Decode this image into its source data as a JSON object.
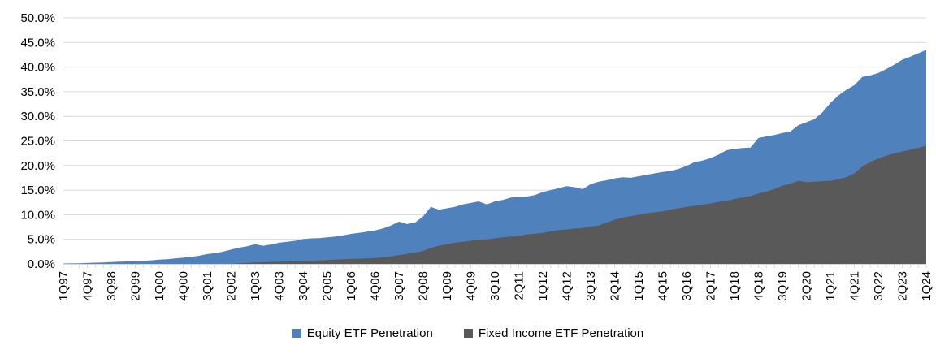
{
  "chart_data": {
    "type": "area",
    "title": "",
    "xlabel": "",
    "ylabel": "",
    "ylim": [
      0,
      50
    ],
    "y_tick_step": 5,
    "y_tick_labels": [
      "0.0%",
      "5.0%",
      "10.0%",
      "15.0%",
      "20.0%",
      "25.0%",
      "30.0%",
      "35.0%",
      "40.0%",
      "45.0%",
      "50.0%"
    ],
    "x_tick_labels": [
      "1Q97",
      "4Q97",
      "3Q98",
      "2Q99",
      "1Q00",
      "4Q00",
      "3Q01",
      "2Q02",
      "1Q03",
      "4Q03",
      "3Q04",
      "2Q05",
      "1Q06",
      "4Q06",
      "3Q07",
      "2Q08",
      "1Q09",
      "4Q09",
      "3Q10",
      "2Q11",
      "1Q12",
      "4Q12",
      "3Q13",
      "2Q14",
      "1Q15",
      "4Q15",
      "3Q16",
      "2Q17",
      "1Q18",
      "4Q18",
      "3Q19",
      "2Q20",
      "1Q21",
      "4Q21",
      "3Q22",
      "2Q23",
      "1Q24"
    ],
    "x_label_every_n": 3,
    "grid": "horizontal",
    "legend_position": "bottom",
    "categories": [
      "1Q97",
      "2Q97",
      "3Q97",
      "4Q97",
      "1Q98",
      "2Q98",
      "3Q98",
      "4Q98",
      "1Q99",
      "2Q99",
      "3Q99",
      "4Q99",
      "1Q00",
      "2Q00",
      "3Q00",
      "4Q00",
      "1Q01",
      "2Q01",
      "3Q01",
      "4Q01",
      "1Q02",
      "2Q02",
      "3Q02",
      "4Q02",
      "1Q03",
      "2Q03",
      "3Q03",
      "4Q03",
      "1Q04",
      "2Q04",
      "3Q04",
      "4Q04",
      "1Q05",
      "2Q05",
      "3Q05",
      "4Q05",
      "1Q06",
      "2Q06",
      "3Q06",
      "4Q06",
      "1Q07",
      "2Q07",
      "3Q07",
      "4Q07",
      "1Q08",
      "2Q08",
      "3Q08",
      "4Q08",
      "1Q09",
      "2Q09",
      "3Q09",
      "4Q09",
      "1Q10",
      "2Q10",
      "3Q10",
      "4Q10",
      "1Q11",
      "2Q11",
      "3Q11",
      "4Q11",
      "1Q12",
      "2Q12",
      "3Q12",
      "4Q12",
      "1Q13",
      "2Q13",
      "3Q13",
      "4Q13",
      "1Q14",
      "2Q14",
      "3Q14",
      "4Q14",
      "1Q15",
      "2Q15",
      "3Q15",
      "4Q15",
      "1Q16",
      "2Q16",
      "3Q16",
      "4Q16",
      "1Q17",
      "2Q17",
      "3Q17",
      "4Q17",
      "1Q18",
      "2Q18",
      "3Q18",
      "4Q18",
      "1Q19",
      "2Q19",
      "3Q19",
      "4Q19",
      "1Q20",
      "2Q20",
      "3Q20",
      "4Q20",
      "1Q21",
      "2Q21",
      "3Q21",
      "4Q21",
      "1Q22",
      "2Q22",
      "3Q22",
      "4Q22",
      "1Q23",
      "2Q23",
      "3Q23",
      "4Q23",
      "1Q24"
    ],
    "series": [
      {
        "name": "Equity ETF Penetration",
        "color": "#4F81BD",
        "values": [
          0.08,
          0.1,
          0.14,
          0.18,
          0.25,
          0.3,
          0.38,
          0.45,
          0.5,
          0.58,
          0.65,
          0.72,
          0.85,
          0.95,
          1.1,
          1.25,
          1.45,
          1.65,
          2,
          2.2,
          2.5,
          2.9,
          3.3,
          3.6,
          4,
          3.7,
          3.95,
          4.3,
          4.5,
          4.7,
          5.05,
          5.2,
          5.25,
          5.4,
          5.55,
          5.8,
          6.1,
          6.3,
          6.55,
          6.8,
          7.2,
          7.8,
          8.6,
          8.1,
          8.4,
          9.6,
          11.6,
          11,
          11.3,
          11.6,
          12.1,
          12.4,
          12.7,
          12.1,
          12.7,
          13,
          13.5,
          13.6,
          13.7,
          14,
          14.6,
          15,
          15.4,
          15.8,
          15.6,
          15.2,
          16.2,
          16.7,
          17,
          17.4,
          17.6,
          17.5,
          17.8,
          18.1,
          18.4,
          18.7,
          18.9,
          19.3,
          19.9,
          20.7,
          21,
          21.5,
          22.2,
          23.1,
          23.4,
          23.55,
          23.65,
          25.6,
          25.9,
          26.2,
          26.6,
          26.9,
          28.2,
          28.8,
          29.4,
          30.8,
          32.7,
          34.2,
          35.4,
          36.3,
          38,
          38.3,
          38.8,
          39.6,
          40.5,
          41.5,
          42.1,
          42.8,
          43.5
        ]
      },
      {
        "name": "Fixed Income ETF Penetration",
        "color": "#595959",
        "values": [
          0,
          0,
          0,
          0,
          0,
          0,
          0,
          0,
          0,
          0,
          0,
          0,
          0,
          0,
          0,
          0,
          0,
          0,
          0,
          0,
          0,
          0,
          0.1,
          0.2,
          0.3,
          0.35,
          0.4,
          0.45,
          0.5,
          0.55,
          0.6,
          0.65,
          0.7,
          0.78,
          0.85,
          0.92,
          1,
          1.05,
          1.12,
          1.2,
          1.32,
          1.5,
          1.8,
          2.05,
          2.3,
          2.6,
          3.25,
          3.7,
          4,
          4.3,
          4.5,
          4.7,
          4.9,
          5,
          5.2,
          5.4,
          5.55,
          5.7,
          6,
          6.1,
          6.3,
          6.6,
          6.9,
          7,
          7.2,
          7.3,
          7.6,
          7.8,
          8.4,
          9,
          9.4,
          9.7,
          10,
          10.3,
          10.5,
          10.7,
          11,
          11.3,
          11.6,
          11.8,
          12,
          12.3,
          12.6,
          12.8,
          13.2,
          13.5,
          13.8,
          14.3,
          14.7,
          15.2,
          15.9,
          16.3,
          16.9,
          16.6,
          16.7,
          16.8,
          16.9,
          17.2,
          17.6,
          18.4,
          19.8,
          20.7,
          21.4,
          22,
          22.5,
          22.8,
          23.2,
          23.6,
          24
        ]
      }
    ],
    "colors": {
      "gridline": "#D9D9D9",
      "axis": "#D9D9D9",
      "text": "#000000",
      "background": "#FFFFFF"
    }
  }
}
